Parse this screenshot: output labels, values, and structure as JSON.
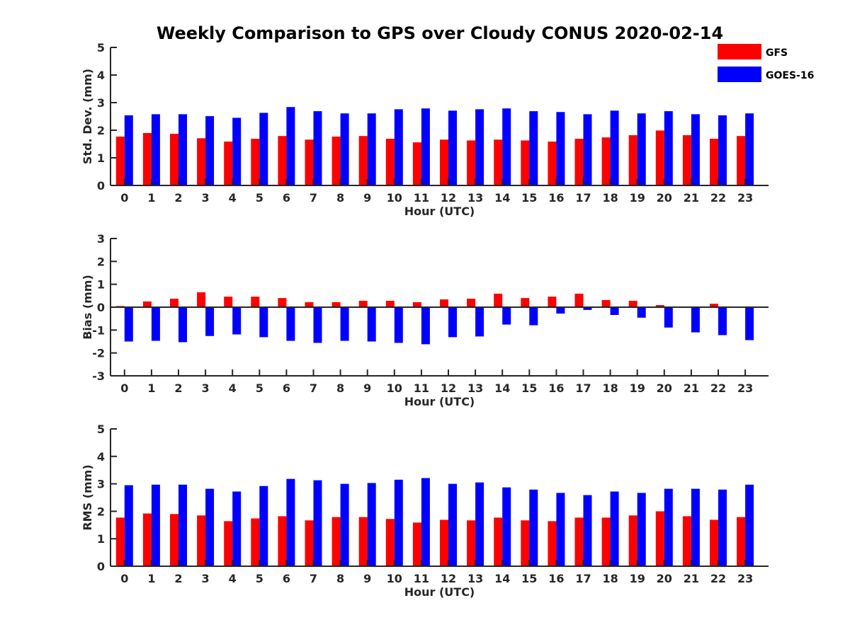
{
  "figure": {
    "title": "Weekly Comparison to GPS over Cloudy CONUS 2020-02-14"
  },
  "legend": [
    {
      "label": "GFS",
      "color": "#ff0000"
    },
    {
      "label": "GOES-16",
      "color": "#0000ff"
    }
  ],
  "chart_data": [
    {
      "type": "bar",
      "xlabel": "Hour (UTC)",
      "ylabel": "Std. Dev. (mm)",
      "ylim": [
        0,
        5
      ],
      "yticks": [
        0,
        1,
        2,
        3,
        4,
        5
      ],
      "categories": [
        "0",
        "1",
        "2",
        "3",
        "4",
        "5",
        "6",
        "7",
        "8",
        "9",
        "10",
        "11",
        "12",
        "13",
        "14",
        "15",
        "16",
        "17",
        "18",
        "19",
        "20",
        "21",
        "22",
        "23"
      ],
      "series": [
        {
          "name": "GFS",
          "color": "#ff0000",
          "values": [
            1.77,
            1.9,
            1.87,
            1.71,
            1.59,
            1.69,
            1.79,
            1.66,
            1.77,
            1.79,
            1.69,
            1.56,
            1.66,
            1.63,
            1.66,
            1.63,
            1.59,
            1.69,
            1.74,
            1.82,
            1.99,
            1.82,
            1.69,
            1.79
          ]
        },
        {
          "name": "GOES-16",
          "color": "#0000ff",
          "values": [
            2.54,
            2.58,
            2.58,
            2.51,
            2.45,
            2.63,
            2.84,
            2.69,
            2.61,
            2.61,
            2.76,
            2.79,
            2.71,
            2.76,
            2.79,
            2.69,
            2.66,
            2.58,
            2.71,
            2.61,
            2.69,
            2.58,
            2.54,
            2.61
          ]
        }
      ]
    },
    {
      "type": "bar",
      "xlabel": "Hour (UTC)",
      "ylabel": "Bias (mm)",
      "ylim": [
        -3,
        3
      ],
      "yticks": [
        -3,
        -2,
        -1,
        0,
        1,
        2,
        3
      ],
      "categories": [
        "0",
        "1",
        "2",
        "3",
        "4",
        "5",
        "6",
        "7",
        "8",
        "9",
        "10",
        "11",
        "12",
        "13",
        "14",
        "15",
        "16",
        "17",
        "18",
        "19",
        "20",
        "21",
        "22",
        "23"
      ],
      "series": [
        {
          "name": "GFS",
          "color": "#ff0000",
          "values": [
            0.05,
            0.25,
            0.37,
            0.65,
            0.46,
            0.46,
            0.4,
            0.22,
            0.22,
            0.28,
            0.28,
            0.22,
            0.34,
            0.37,
            0.59,
            0.4,
            0.46,
            0.59,
            0.31,
            0.28,
            0.09,
            -0.03,
            0.15,
            0.0
          ]
        },
        {
          "name": "GOES-16",
          "color": "#0000ff",
          "values": [
            -1.5,
            -1.47,
            -1.53,
            -1.26,
            -1.19,
            -1.31,
            -1.47,
            -1.56,
            -1.47,
            -1.5,
            -1.56,
            -1.62,
            -1.31,
            -1.28,
            -0.76,
            -0.79,
            -0.28,
            -0.12,
            -0.34,
            -0.46,
            -0.89,
            -1.1,
            -1.22,
            -1.44
          ]
        }
      ]
    },
    {
      "type": "bar",
      "xlabel": "Hour (UTC)",
      "ylabel": "RMS (mm)",
      "ylim": [
        0,
        5
      ],
      "yticks": [
        0,
        1,
        2,
        3,
        4,
        5
      ],
      "categories": [
        "0",
        "1",
        "2",
        "3",
        "4",
        "5",
        "6",
        "7",
        "8",
        "9",
        "10",
        "11",
        "12",
        "13",
        "14",
        "15",
        "16",
        "17",
        "18",
        "19",
        "20",
        "21",
        "22",
        "23"
      ],
      "series": [
        {
          "name": "GFS",
          "color": "#ff0000",
          "values": [
            1.77,
            1.92,
            1.9,
            1.85,
            1.64,
            1.74,
            1.82,
            1.67,
            1.79,
            1.79,
            1.72,
            1.59,
            1.69,
            1.67,
            1.77,
            1.67,
            1.64,
            1.77,
            1.77,
            1.85,
            2.0,
            1.82,
            1.69,
            1.79
          ]
        },
        {
          "name": "GOES-16",
          "color": "#0000ff",
          "values": [
            2.95,
            2.97,
            2.97,
            2.82,
            2.72,
            2.92,
            3.18,
            3.13,
            3.0,
            3.03,
            3.15,
            3.21,
            3.0,
            3.05,
            2.87,
            2.79,
            2.67,
            2.59,
            2.72,
            2.67,
            2.82,
            2.82,
            2.79,
            2.97
          ]
        }
      ]
    }
  ]
}
